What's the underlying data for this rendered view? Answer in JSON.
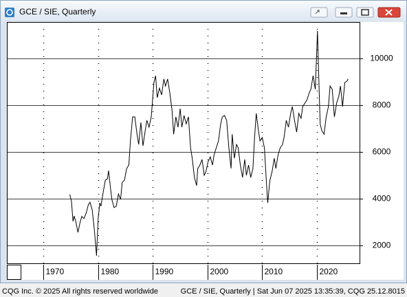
{
  "chart_data": {
    "type": "line",
    "title": "GCE / SIE, Quarterly",
    "color": "#000000",
    "x": [
      1974.8,
      1975.1,
      1975.4,
      1975.6,
      1975.9,
      1976.3,
      1976.7,
      1977.0,
      1977.4,
      1977.8,
      1978.2,
      1978.5,
      1978.9,
      1979.3,
      1979.7,
      1980.0,
      1980.3,
      1980.5,
      1980.9,
      1981.3,
      1981.7,
      1981.9,
      1982.2,
      1982.5,
      1982.9,
      1983.3,
      1983.7,
      1984.1,
      1984.4,
      1984.8,
      1985.2,
      1985.6,
      1985.9,
      1986.3,
      1986.7,
      1987.1,
      1987.4,
      1987.8,
      1988.2,
      1988.6,
      1988.9,
      1989.3,
      1989.7,
      1990.2,
      1990.5,
      1990.8,
      1991.2,
      1991.6,
      1992.0,
      1992.3,
      1992.7,
      1993.1,
      1993.5,
      1993.8,
      1994.2,
      1994.6,
      1995.0,
      1995.3,
      1995.7,
      1996.1,
      1996.5,
      1996.9,
      1997.2,
      1997.6,
      1998.0,
      1998.2,
      1998.6,
      1999.0,
      1999.4,
      1999.7,
      2000.1,
      2000.5,
      2000.9,
      2001.2,
      2001.6,
      2002.0,
      2002.4,
      2002.7,
      2003.1,
      2003.5,
      2003.9,
      2004.3,
      2004.5,
      2004.9,
      2005.3,
      2005.6,
      2006.0,
      2006.4,
      2006.8,
      2007.1,
      2007.5,
      2007.9,
      2008.3,
      2008.6,
      2008.9,
      2009.3,
      2009.6,
      2010.0,
      2010.4,
      2010.8,
      2011.0,
      2011.4,
      2011.8,
      2012.2,
      2012.5,
      2012.9,
      2013.3,
      2013.7,
      2014.0,
      2014.4,
      2014.8,
      2015.2,
      2015.5,
      2015.9,
      2016.3,
      2016.7,
      2017.1,
      2017.4,
      2017.8,
      2018.2,
      2018.6,
      2018.9,
      2019.3,
      2019.7,
      2020.1,
      2020.3,
      2020.6,
      2020.9,
      2021.3,
      2021.7,
      2022.1,
      2022.4,
      2022.8,
      2023.2,
      2023.6,
      2024.0,
      2024.3,
      2024.7,
      2025.1,
      2025.5,
      2025.7
    ],
    "values": [
      4180,
      3910,
      3030,
      3260,
      3030,
      2560,
      3000,
      3240,
      3150,
      3380,
      3740,
      3850,
      3530,
      2650,
      1560,
      3150,
      3820,
      3680,
      4260,
      4790,
      4850,
      5200,
      4560,
      3970,
      3620,
      3680,
      4200,
      3970,
      4700,
      4790,
      5290,
      5440,
      6470,
      7500,
      7500,
      6760,
      6320,
      7260,
      6260,
      6910,
      7350,
      7060,
      7500,
      8970,
      9260,
      8320,
      8730,
      8440,
      9120,
      8820,
      9120,
      8530,
      7790,
      6760,
      7500,
      7060,
      7850,
      7060,
      7560,
      7200,
      7500,
      6180,
      5730,
      4910,
      4560,
      5290,
      5440,
      5680,
      5000,
      5150,
      5590,
      5790,
      5440,
      5880,
      6180,
      6470,
      7200,
      7500,
      7560,
      7350,
      6180,
      5290,
      6760,
      5730,
      6320,
      6180,
      5440,
      4910,
      5680,
      5000,
      5440,
      4910,
      5290,
      6620,
      7650,
      6910,
      6470,
      6620,
      6180,
      4560,
      3820,
      4790,
      5150,
      5730,
      5290,
      5880,
      6180,
      6320,
      6620,
      7350,
      7060,
      7650,
      7940,
      7350,
      6850,
      7650,
      7440,
      7940,
      8090,
      8230,
      8530,
      8680,
      9260,
      8680,
      11180,
      9560,
      7200,
      6910,
      6760,
      7500,
      7940,
      8820,
      8680,
      7500,
      8090,
      8380,
      8820,
      7940,
      8970,
      9030,
      9120
    ],
    "xlim": [
      1963.3,
      2027.8
    ],
    "xticks": [
      1970,
      1980,
      1990,
      2000,
      2010,
      2020
    ],
    "ylim": [
      1235,
      11560
    ],
    "yticks": [
      2000,
      4000,
      6000,
      8000,
      10000
    ],
    "grid": true
  },
  "footer": {
    "left": "CQG Inc. © 2025 All rights reserved worldwide",
    "right": "GCE / SIE, Quarterly | Sat Jun 07 2025 13:35:39, CQG 25.12.8015"
  }
}
